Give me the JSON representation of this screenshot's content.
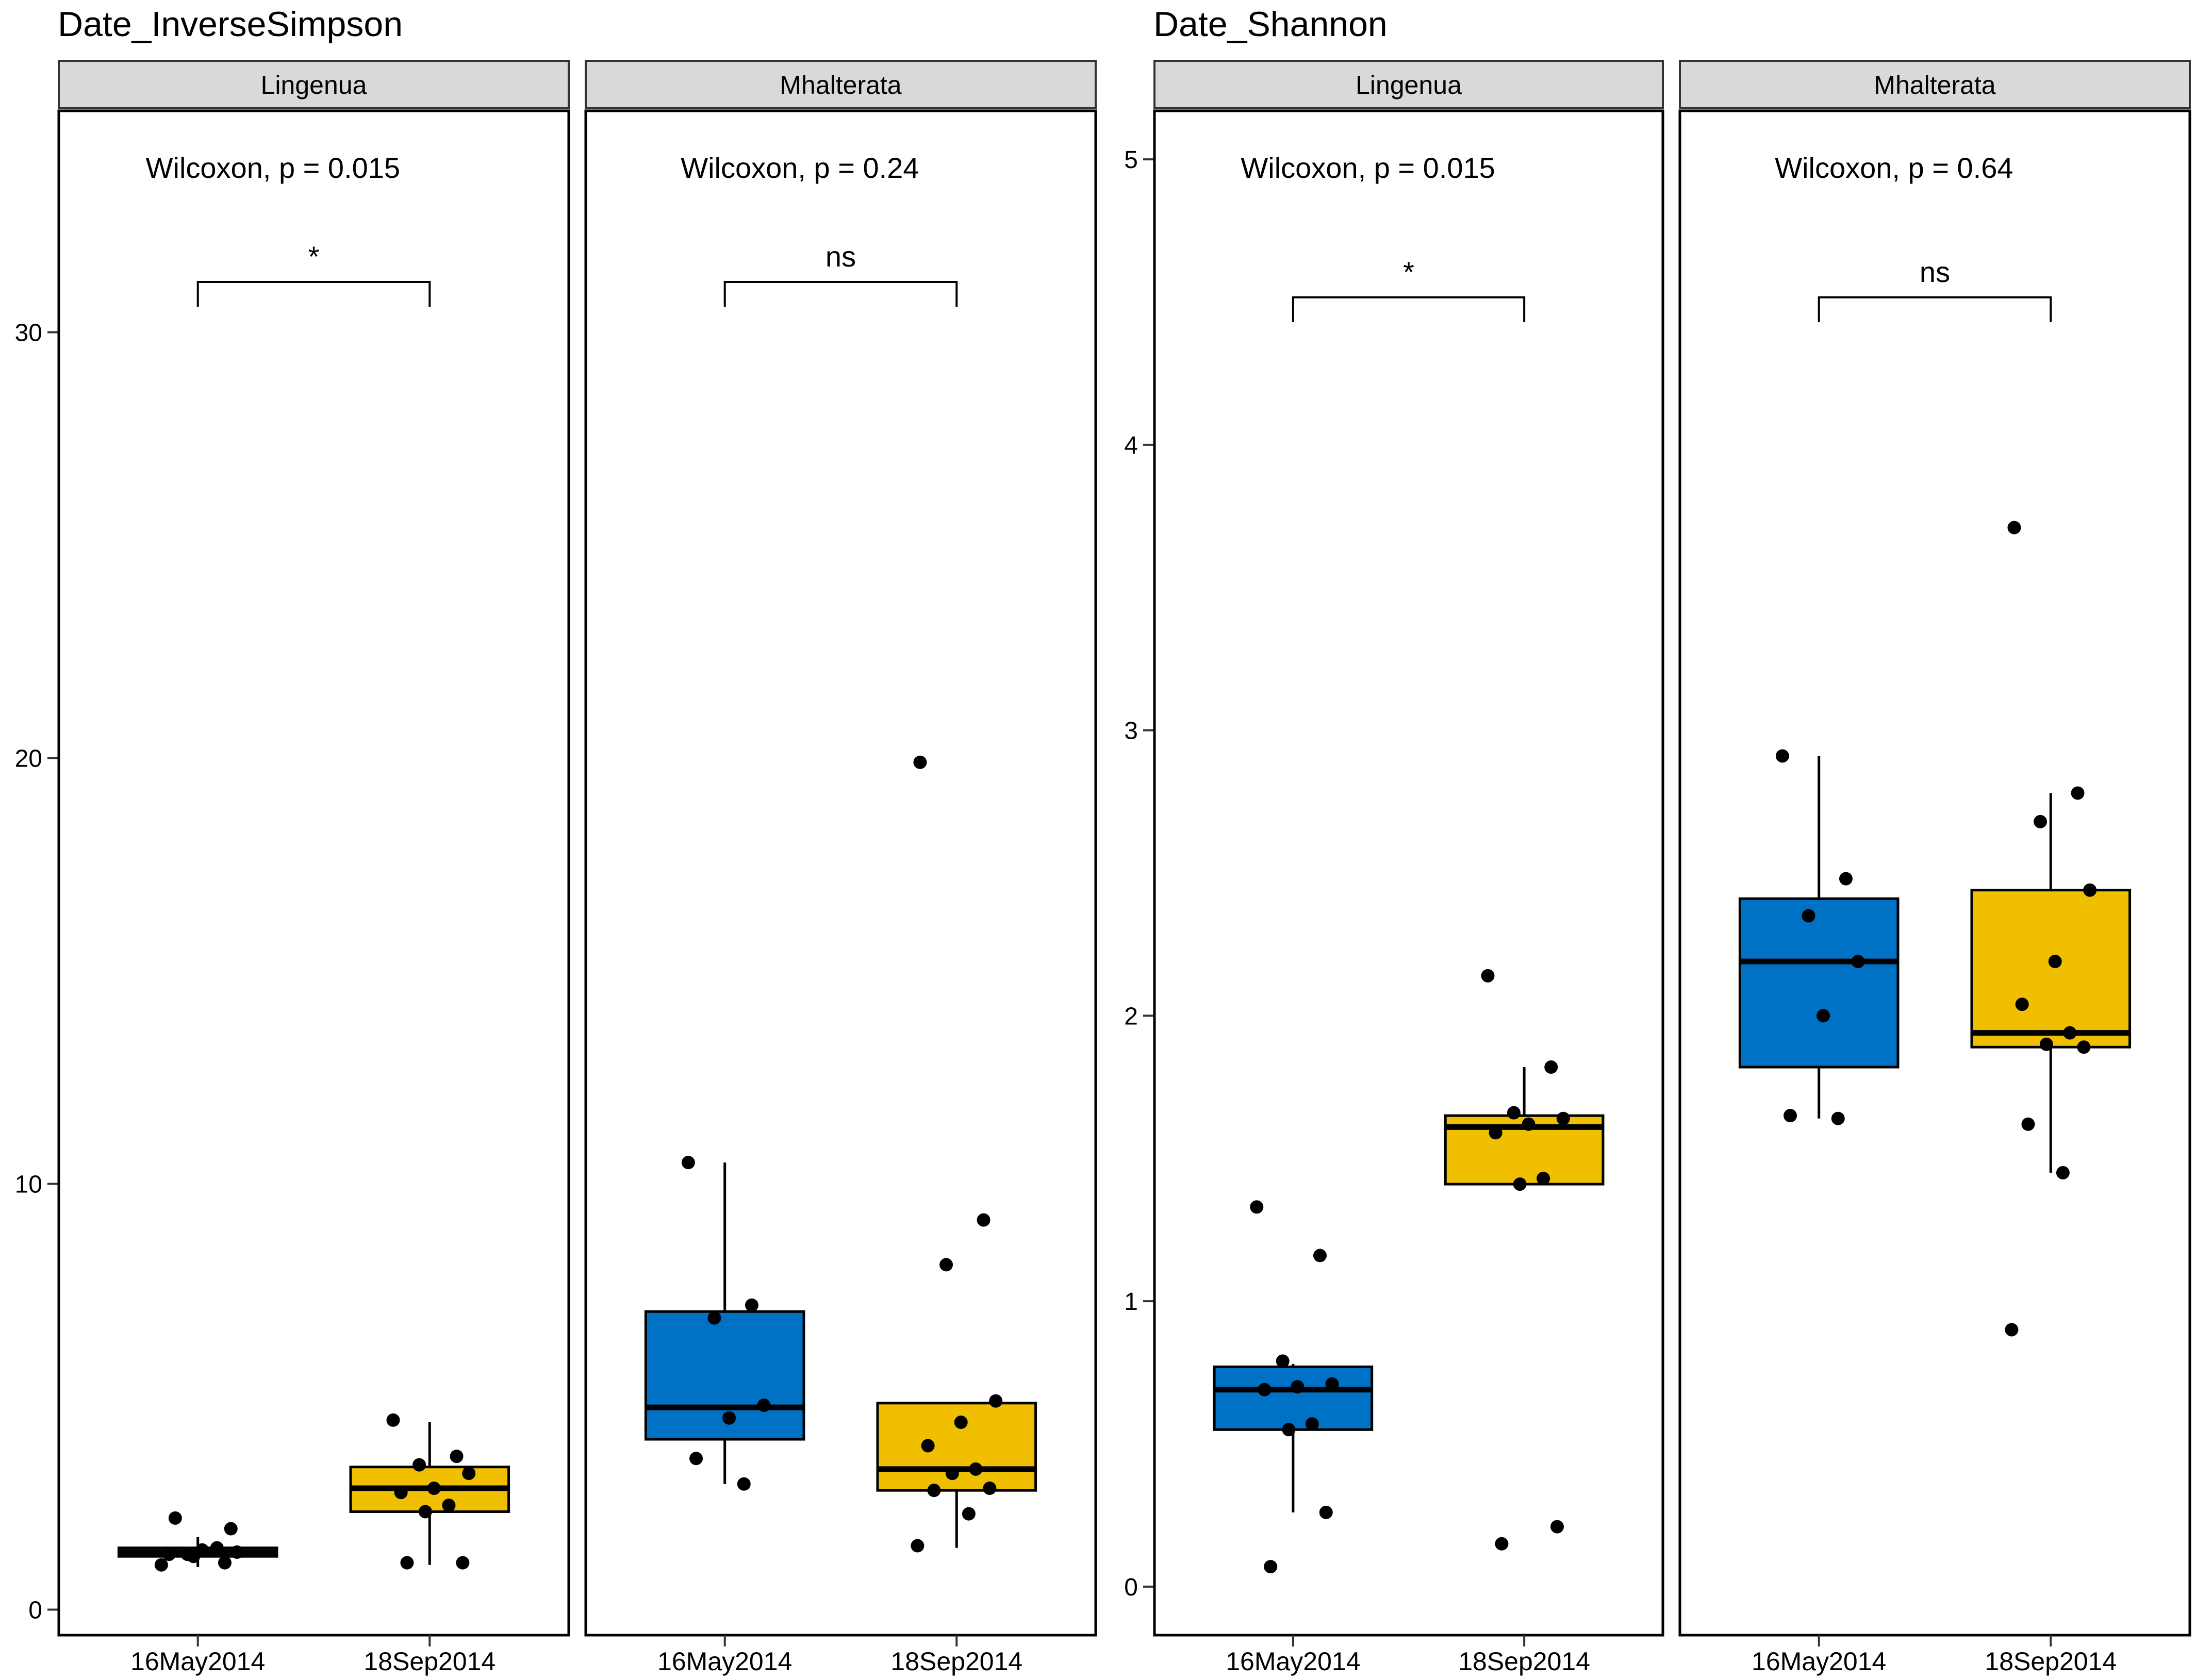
{
  "colors": {
    "16May2014": "#0072C6",
    "18Sep2014": "#F0C000",
    "strip": "#D9D9D9",
    "point": "#000000",
    "frame": "#000000"
  },
  "chart_data": [
    {
      "type": "boxplot",
      "title": "Date_InverseSimpson",
      "xlabel": "",
      "ylabel": "",
      "ylim": [
        -0.6,
        35.2
      ],
      "yticks": [
        0,
        10,
        20,
        30
      ],
      "ytick_labels": [
        "0",
        "10",
        "20",
        "30"
      ],
      "categories": [
        "16May2014",
        "18Sep2014"
      ],
      "grid": false,
      "facets": [
        {
          "strip": "Lingenua",
          "test_label": "Wilcoxon, p = 0.015",
          "signif": "*",
          "bracket_y": 30.6,
          "boxes": [
            {
              "group": "16May2014",
              "q1": 1.25,
              "median": 1.35,
              "q3": 1.45,
              "whisker_low": 1.0,
              "whisker_high": 1.7,
              "points": [
                1.05,
                1.1,
                1.3,
                1.35,
                1.4,
                1.3,
                1.45,
                1.25,
                1.9,
                2.15
              ]
            },
            {
              "group": "18Sep2014",
              "q1": 2.3,
              "median": 2.85,
              "q3": 3.35,
              "whisker_low": 1.05,
              "whisker_high": 4.4,
              "points": [
                4.45,
                3.6,
                3.4,
                3.2,
                2.85,
                2.75,
                2.45,
                2.3,
                1.1,
                1.1
              ]
            }
          ]
        },
        {
          "strip": "Mhalterata",
          "test_label": "Wilcoxon, p = 0.24",
          "signif": "ns",
          "bracket_y": 30.6,
          "boxes": [
            {
              "group": "16May2014",
              "q1": 4.0,
              "median": 4.75,
              "q3": 7.0,
              "whisker_low": 2.95,
              "whisker_high": 10.5,
              "points": [
                10.5,
                7.15,
                6.85,
                4.8,
                4.5,
                3.55,
                2.95
              ]
            },
            {
              "group": "18Sep2014",
              "q1": 2.8,
              "median": 3.3,
              "q3": 4.85,
              "whisker_low": 1.45,
              "whisker_high": 4.85,
              "points": [
                19.9,
                9.15,
                8.1,
                4.9,
                4.4,
                3.85,
                3.3,
                3.2,
                2.85,
                2.8,
                2.25,
                1.5
              ]
            }
          ]
        }
      ]
    },
    {
      "type": "boxplot",
      "title": "Date_Shannon",
      "xlabel": "",
      "ylabel": "",
      "ylim": [
        -0.17,
        5.17
      ],
      "yticks": [
        0,
        1,
        2,
        3,
        4,
        5
      ],
      "ytick_labels": [
        "0",
        "1",
        "2",
        "3",
        "4",
        "5"
      ],
      "categories": [
        "16May2014",
        "18Sep2014"
      ],
      "grid": false,
      "facets": [
        {
          "strip": "Lingenua",
          "test_label": "Wilcoxon, p = 0.015",
          "signif": "*",
          "bracket_y": 4.43,
          "boxes": [
            {
              "group": "16May2014",
              "q1": 0.55,
              "median": 0.69,
              "q3": 0.77,
              "whisker_low": 0.26,
              "whisker_high": 0.78,
              "points": [
                1.33,
                1.16,
                0.79,
                0.71,
                0.7,
                0.69,
                0.57,
                0.55,
                0.26,
                0.07
              ]
            },
            {
              "group": "18Sep2014",
              "q1": 1.41,
              "median": 1.61,
              "q3": 1.65,
              "whisker_low": 1.41,
              "whisker_high": 1.82,
              "points": [
                2.14,
                1.82,
                1.66,
                1.64,
                1.62,
                1.59,
                1.43,
                1.41,
                0.21,
                0.15
              ]
            }
          ]
        },
        {
          "strip": "Mhalterata",
          "test_label": "Wilcoxon, p = 0.64",
          "signif": "ns",
          "bracket_y": 4.43,
          "boxes": [
            {
              "group": "16May2014",
              "q1": 1.82,
              "median": 2.19,
              "q3": 2.41,
              "whisker_low": 1.64,
              "whisker_high": 2.91,
              "points": [
                2.91,
                2.48,
                2.35,
                2.19,
                2.0,
                1.65,
                1.64
              ]
            },
            {
              "group": "18Sep2014",
              "q1": 1.89,
              "median": 1.94,
              "q3": 2.44,
              "whisker_low": 1.45,
              "whisker_high": 2.78,
              "points": [
                3.71,
                2.78,
                2.68,
                2.44,
                2.19,
                2.04,
                1.94,
                1.9,
                1.89,
                1.62,
                1.45,
                0.9
              ]
            }
          ]
        }
      ]
    }
  ]
}
